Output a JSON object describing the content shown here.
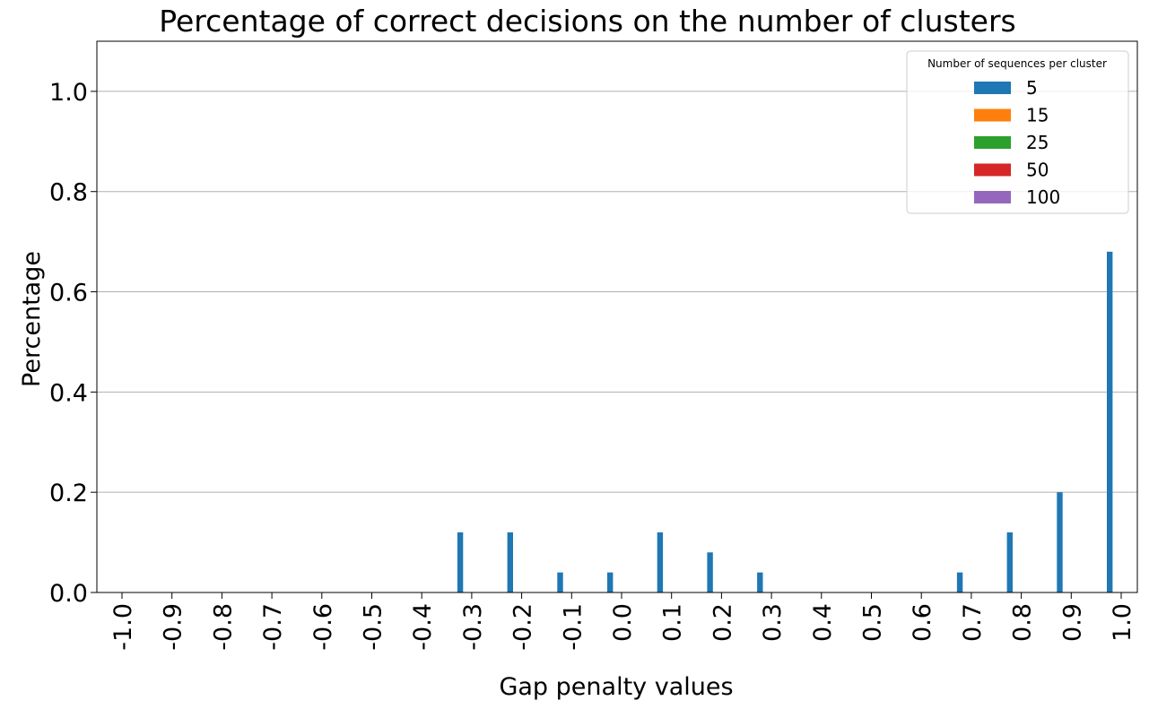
{
  "chart_data": {
    "type": "bar",
    "title": "Percentage of correct decisions on the number of clusters",
    "xlabel": "Gap penalty values",
    "ylabel": "Percentage",
    "ylim": [
      0,
      1.1
    ],
    "yticks": [
      "0.0",
      "0.2",
      "0.4",
      "0.6",
      "0.8",
      "1.0"
    ],
    "grid": "y",
    "categories": [
      "-1.0",
      "-0.9",
      "-0.8",
      "-0.7",
      "-0.6",
      "-0.5",
      "-0.4",
      "-0.3",
      "-0.2",
      "-0.1",
      "0.0",
      "0.1",
      "0.2",
      "0.3",
      "0.4",
      "0.5",
      "0.6",
      "0.7",
      "0.8",
      "0.9",
      "1.0"
    ],
    "legend": {
      "title": "Number of sequences per cluster",
      "position": "top-right"
    },
    "series": [
      {
        "name": "5",
        "color": "#1f77b4",
        "values": [
          0,
          0,
          0,
          0,
          0,
          0,
          0,
          0.12,
          0.12,
          0.04,
          0.04,
          0.12,
          0.08,
          0.04,
          0,
          0,
          0,
          0.04,
          0.12,
          0.2,
          0.68
        ]
      },
      {
        "name": "15",
        "color": "#ff7f0e",
        "values": [
          0,
          0,
          0,
          0,
          0,
          0,
          0,
          0,
          0,
          0,
          0,
          0,
          0,
          0,
          0,
          0,
          0,
          0,
          0,
          0,
          0
        ]
      },
      {
        "name": "25",
        "color": "#2ca02c",
        "values": [
          0,
          0,
          0,
          0,
          0,
          0,
          0,
          0,
          0,
          0,
          0,
          0,
          0,
          0,
          0,
          0,
          0,
          0,
          0,
          0,
          0
        ]
      },
      {
        "name": "50",
        "color": "#d62728",
        "values": [
          0,
          0,
          0,
          0,
          0,
          0,
          0,
          0,
          0,
          0,
          0,
          0,
          0,
          0,
          0,
          0,
          0,
          0,
          0,
          0,
          0
        ]
      },
      {
        "name": "100",
        "color": "#9467bd",
        "values": [
          0,
          0,
          0,
          0,
          0,
          0,
          0,
          0,
          0,
          0,
          0,
          0,
          0,
          0,
          0,
          0,
          0,
          0,
          0,
          0,
          0
        ]
      }
    ]
  }
}
